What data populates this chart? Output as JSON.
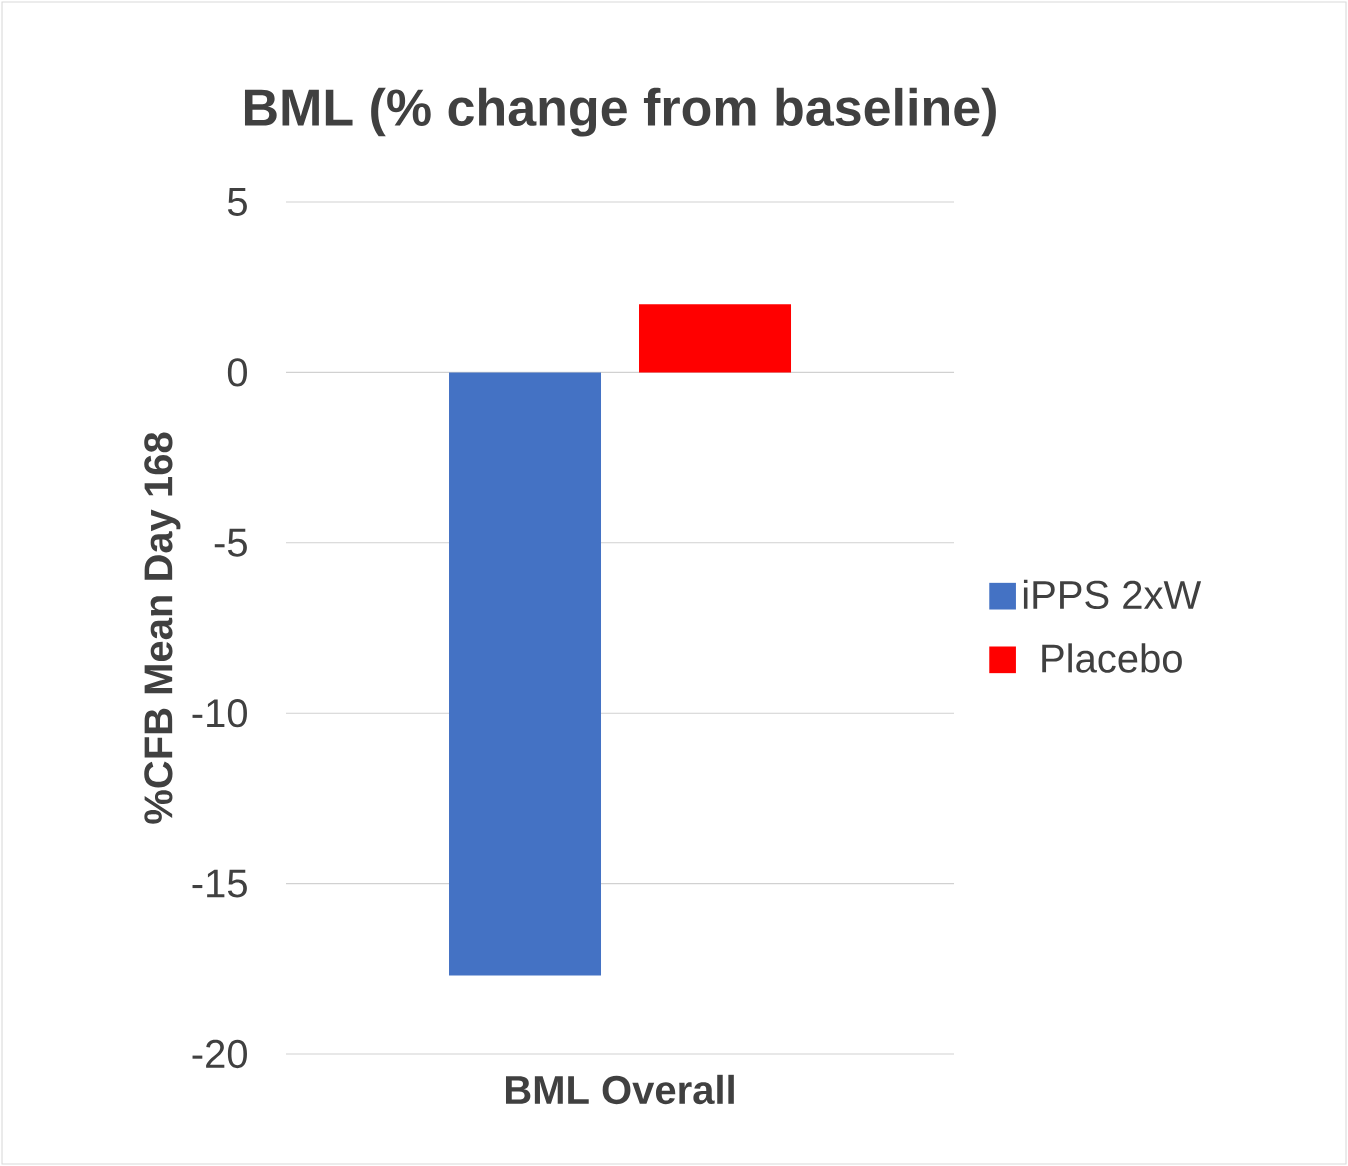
{
  "chart_data": {
    "type": "bar",
    "title": "BML (% change from baseline)",
    "ylabel": "%CFB Mean Day 168",
    "categories": [
      "BML Overall"
    ],
    "series": [
      {
        "name": "iPPS 2xW",
        "color": "#4472c4",
        "values": [
          -17.7
        ]
      },
      {
        "name": "Placebo",
        "color": "#ff0000",
        "values": [
          2.0
        ]
      }
    ],
    "ylim": [
      -20,
      5
    ],
    "yticks": [
      -20,
      -15,
      -10,
      -5,
      0,
      5
    ],
    "grid": "y",
    "legend": "right"
  }
}
